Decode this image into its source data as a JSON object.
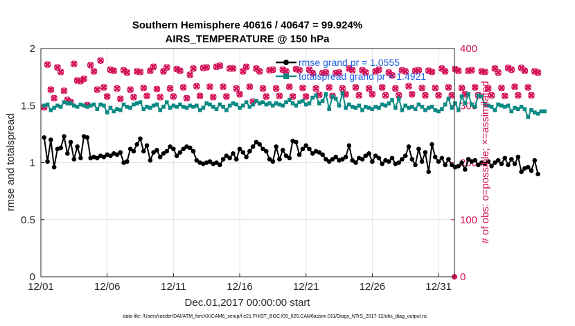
{
  "chart_data": {
    "type": "line",
    "title": "Southern Hemisphere 40616 / 40647 = 99.924%",
    "subtitle": "AIRS_TEMPERATURE @ 150 hPa",
    "xlabel": "Dec.01,2017 00:00:00 start",
    "ylabel": "rmse and totalspread",
    "y2label": "# of obs: o=possible; ×=assimilated",
    "footer": "data file: /Users/raeder/DAI/ATM_forcXX/CAM6_setup/f.e21.FHIST_BGC.f09_025.CAM6assim.011/Diags_NTrS_2017-12/obs_diag_output.nc",
    "xlim": [
      1,
      32.2
    ],
    "ylim": [
      0,
      2
    ],
    "y2lim": [
      0,
      400
    ],
    "xticks": [
      1,
      6,
      11,
      16,
      21,
      26,
      31
    ],
    "xtick_labels": [
      "12/01",
      "12/06",
      "12/11",
      "12/16",
      "12/21",
      "12/26",
      "12/31"
    ],
    "yticks": [
      0,
      0.5,
      1,
      1.5,
      2
    ],
    "ytick_labels": [
      "0",
      "0.5",
      "1",
      "1.5",
      "2"
    ],
    "y2ticks": [
      0,
      100,
      200,
      300,
      400
    ],
    "y2tick_labels": [
      "0",
      "100",
      "200",
      "300",
      "400"
    ],
    "grid": true,
    "legend_position": "top-right",
    "colors": {
      "rmse": "#000000",
      "spread": "#0b8a84",
      "obs": "#d4145a",
      "legend_text": "#1f5fe0"
    },
    "series": [
      {
        "name": "rmse grand pr = 1.0555",
        "axis": "left",
        "x0": 1.25,
        "dx": 0.25,
        "values": [
          1.22,
          1.01,
          1.2,
          0.96,
          1.12,
          1.13,
          1.23,
          1.08,
          1.18,
          1.03,
          1.14,
          1.04,
          1.23,
          1.22,
          1.04,
          1.05,
          1.04,
          1.06,
          1.05,
          1.07,
          1.06,
          1.08,
          1.07,
          1.09,
          1.0,
          1.01,
          1.12,
          1.1,
          1.16,
          1.21,
          1.1,
          1.15,
          1.02,
          1.09,
          1.11,
          1.05,
          1.08,
          1.1,
          1.14,
          1.12,
          1.06,
          1.09,
          1.12,
          1.14,
          1.13,
          1.1,
          1.02,
          1.0,
          0.99,
          1.0,
          1.01,
          0.99,
          1.0,
          0.98,
          1.03,
          1.06,
          1.04,
          1.08,
          1.03,
          1.12,
          1.09,
          1.05,
          1.1,
          1.14,
          1.18,
          1.16,
          1.12,
          1.1,
          1.03,
          1.01,
          1.14,
          1.03,
          1.11,
          1.06,
          1.04,
          1.19,
          1.18,
          1.07,
          1.12,
          1.15,
          1.12,
          1.08,
          1.1,
          1.09,
          1.07,
          1.03,
          1.01,
          1.03,
          1.05,
          1.02,
          1.03,
          1.05,
          1.15,
          1.02,
          1.0,
          1.04,
          1.03,
          1.06,
          1.08,
          1.01,
          1.06,
          1.04,
          0.99,
          1.02,
          1.01,
          1.04,
          0.99,
          1.0,
          1.03,
          1.06,
          1.14,
          1.03,
          0.98,
          1.12,
          1.01,
          1.09,
          0.92,
          1.16,
          1.05,
          1.01,
          1.04,
          0.98,
          1.03,
          0.98,
          0.96,
          0.97,
          1.0,
          0.94,
          1.03,
          1.01,
          1.02,
          0.98,
          1.0,
          0.99,
          1.01,
          0.97,
          1.0,
          1.02,
          0.99,
          1.04,
          0.98,
          1.03,
          0.99,
          1.05,
          0.92,
          0.95,
          0.96,
          0.93,
          1.02,
          0.9
        ]
      },
      {
        "name": "totalspread grand pr = 1.4921",
        "axis": "left",
        "x0": 1.25,
        "dx": 0.25,
        "values": [
          1.5,
          1.51,
          1.46,
          1.48,
          1.5,
          1.49,
          1.53,
          1.52,
          1.52,
          1.5,
          1.49,
          1.51,
          1.5,
          1.49,
          1.5,
          1.51,
          1.47,
          1.51,
          1.5,
          1.44,
          1.48,
          1.45,
          1.47,
          1.46,
          1.51,
          1.49,
          1.48,
          1.51,
          1.52,
          1.53,
          1.47,
          1.49,
          1.48,
          1.5,
          1.51,
          1.46,
          1.49,
          1.53,
          1.48,
          1.5,
          1.49,
          1.51,
          1.49,
          1.48,
          1.5,
          1.49,
          1.5,
          1.46,
          1.48,
          1.52,
          1.51,
          1.49,
          1.47,
          1.51,
          1.49,
          1.46,
          1.5,
          1.52,
          1.51,
          1.48,
          1.5,
          1.53,
          1.49,
          1.51,
          1.54,
          1.52,
          1.53,
          1.51,
          1.52,
          1.5,
          1.52,
          1.51,
          1.5,
          1.53,
          1.55,
          1.52,
          1.5,
          1.53,
          1.54,
          1.51,
          1.52,
          1.57,
          1.59,
          1.52,
          1.54,
          1.6,
          1.47,
          1.58,
          1.56,
          1.5,
          1.61,
          1.48,
          1.51,
          1.49,
          1.48,
          1.5,
          1.46,
          1.49,
          1.48,
          1.47,
          1.49,
          1.48,
          1.51,
          1.5,
          1.52,
          1.55,
          1.48,
          1.56,
          1.46,
          1.5,
          1.48,
          1.49,
          1.47,
          1.51,
          1.49,
          1.46,
          1.48,
          1.49,
          1.46,
          1.45,
          1.47,
          1.51,
          1.56,
          1.48,
          1.52,
          1.46,
          1.58,
          1.52,
          1.6,
          1.51,
          1.49,
          1.59,
          1.58,
          1.51,
          1.5,
          1.49,
          1.46,
          1.51,
          1.5,
          1.49,
          1.5,
          1.45,
          1.48,
          1.47,
          1.49,
          1.47,
          1.4,
          1.46,
          1.44,
          1.43,
          1.45,
          1.45
        ]
      },
      {
        "name": "obs",
        "axis": "right",
        "x0": 1.25,
        "dx": 0.25,
        "possible": [
          297,
          372,
          328,
          313,
          367,
          359,
          326,
          310,
          306,
          373,
          344,
          343,
          347,
          301,
          371,
          360,
          328,
          379,
          332,
          316,
          363,
          361,
          330,
          312,
          362,
          358,
          328,
          315,
          360,
          359,
          331,
          317,
          361,
          368,
          329,
          315,
          360,
          367,
          330,
          316,
          364,
          361,
          332,
          313,
          354,
          365,
          334,
          317,
          366,
          367,
          333,
          315,
          368,
          370,
          333,
          316,
          365,
          365,
          330,
          320,
          360,
          368,
          333,
          307,
          365,
          360,
          330,
          316,
          362,
          363,
          330,
          317,
          363,
          360,
          333,
          316,
          364,
          362,
          331,
          316,
          363,
          357,
          330,
          319,
          357,
          358,
          332,
          317,
          357,
          358,
          330,
          320,
          365,
          362,
          332,
          318,
          362,
          358,
          330,
          320,
          360,
          363,
          332,
          318,
          358,
          353,
          330,
          318,
          362,
          360,
          334,
          320,
          361,
          362,
          331,
          318,
          361,
          359,
          331,
          318,
          365,
          360,
          332,
          318,
          364,
          361,
          331,
          320,
          361,
          362,
          332,
          318,
          360,
          359,
          330,
          318,
          365,
          358,
          331,
          317,
          366,
          363,
          333,
          318,
          366,
          361,
          332,
          318,
          360,
          358
        ],
        "assimilated": [
          297,
          372,
          328,
          313,
          367,
          359,
          326,
          310,
          306,
          373,
          344,
          343,
          347,
          301,
          371,
          360,
          328,
          379,
          332,
          316,
          363,
          361,
          330,
          312,
          362,
          358,
          328,
          315,
          360,
          359,
          331,
          317,
          361,
          368,
          329,
          315,
          360,
          367,
          330,
          316,
          364,
          361,
          332,
          313,
          354,
          365,
          334,
          317,
          366,
          367,
          333,
          315,
          368,
          370,
          333,
          316,
          365,
          365,
          330,
          320,
          360,
          368,
          333,
          307,
          365,
          360,
          330,
          316,
          362,
          363,
          330,
          317,
          363,
          360,
          333,
          316,
          364,
          362,
          331,
          316,
          363,
          357,
          330,
          319,
          357,
          358,
          332,
          317,
          357,
          358,
          330,
          320,
          365,
          362,
          332,
          318,
          362,
          358,
          330,
          320,
          360,
          363,
          332,
          318,
          358,
          353,
          330,
          318,
          362,
          360,
          334,
          320,
          361,
          362,
          331,
          318,
          361,
          359,
          331,
          318,
          365,
          360,
          332,
          318,
          364,
          361,
          331,
          320,
          361,
          362,
          332,
          318,
          360,
          359,
          330,
          318,
          365,
          358,
          331,
          317,
          366,
          363,
          333,
          318,
          366,
          361,
          332,
          318,
          360,
          358
        ]
      }
    ]
  }
}
